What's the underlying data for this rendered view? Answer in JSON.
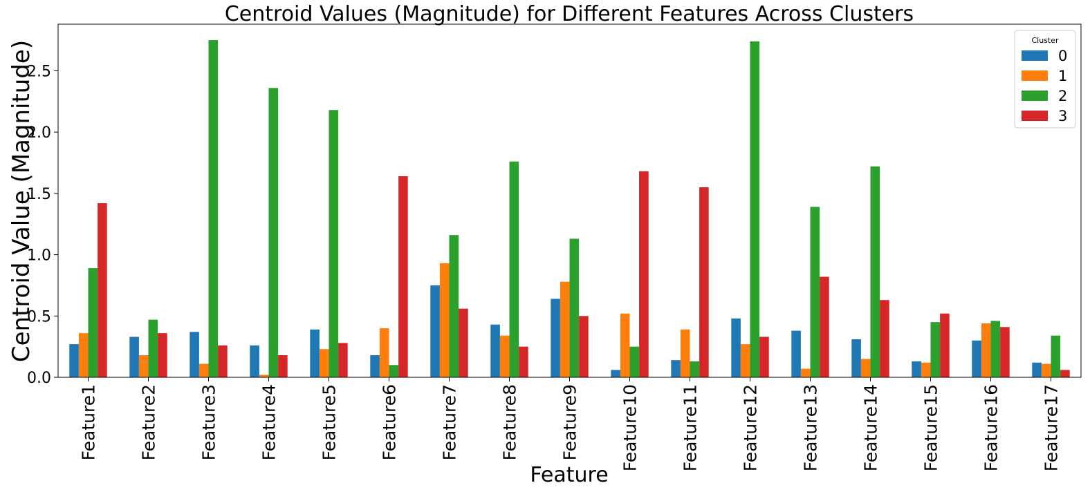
{
  "chart_data": {
    "type": "bar",
    "title": "Centroid Values (Magnitude) for Different Features Across Clusters",
    "xlabel": "Feature",
    "ylabel": "Centroid Value (Magnitude)",
    "ylim": [
      0,
      2.88
    ],
    "yticks": [
      "0.0",
      "0.5",
      "1.0",
      "1.5",
      "2.0",
      "2.5"
    ],
    "grid": false,
    "legend": {
      "title": "Cluster",
      "placement": "top-right"
    },
    "categories": [
      "Feature1",
      "Feature2",
      "Feature3",
      "Feature4",
      "Feature5",
      "Feature6",
      "Feature7",
      "Feature8",
      "Feature9",
      "Feature10",
      "Feature11",
      "Feature12",
      "Feature13",
      "Feature14",
      "Feature15",
      "Feature16",
      "Feature17"
    ],
    "series": [
      {
        "name": "0",
        "color": "#1f77b4",
        "values": [
          0.27,
          0.33,
          0.37,
          0.26,
          0.39,
          0.18,
          0.75,
          0.43,
          0.64,
          0.06,
          0.14,
          0.48,
          0.38,
          0.31,
          0.13,
          0.3,
          0.12
        ]
      },
      {
        "name": "1",
        "color": "#ff7f0e",
        "values": [
          0.36,
          0.18,
          0.11,
          0.02,
          0.23,
          0.4,
          0.93,
          0.34,
          0.78,
          0.52,
          0.39,
          0.27,
          0.07,
          0.15,
          0.12,
          0.44,
          0.11
        ]
      },
      {
        "name": "2",
        "color": "#2ca02c",
        "values": [
          0.89,
          0.47,
          2.75,
          2.36,
          2.18,
          0.1,
          1.16,
          1.76,
          1.13,
          0.25,
          0.13,
          2.74,
          1.39,
          1.72,
          0.45,
          0.46,
          0.34
        ]
      },
      {
        "name": "3",
        "color": "#d62728",
        "values": [
          1.42,
          0.36,
          0.26,
          0.18,
          0.28,
          1.64,
          0.56,
          0.25,
          0.5,
          1.68,
          1.55,
          0.33,
          0.82,
          0.63,
          0.52,
          0.41,
          0.06
        ]
      }
    ]
  }
}
